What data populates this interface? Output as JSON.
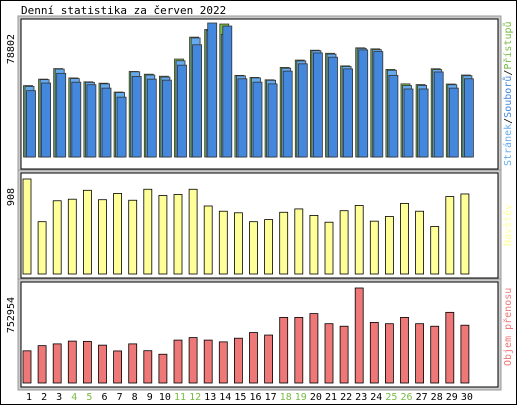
{
  "chart_data": [
    {
      "type": "bar",
      "title": "Denní statistika za červen 2022",
      "ylabel_max": "78802",
      "categories": [
        "1",
        "2",
        "3",
        "4",
        "5",
        "6",
        "7",
        "8",
        "9",
        "10",
        "11",
        "12",
        "13",
        "14",
        "15",
        "16",
        "17",
        "18",
        "19",
        "20",
        "21",
        "22",
        "23",
        "24",
        "25",
        "26",
        "27",
        "28",
        "29",
        "30"
      ],
      "weekend_days": [
        "4",
        "5",
        "11",
        "12",
        "18",
        "19",
        "25",
        "26"
      ],
      "legend": [
        "Stránek",
        "/",
        "Souborů",
        "/",
        "Přístupů"
      ],
      "colors": {
        "pages": "#66aaee",
        "files": "#4488dd",
        "hits": "#77bb44"
      },
      "ylim": [
        0,
        78802
      ],
      "series": [
        {
          "name": "Stránek",
          "values": [
            41500,
            45500,
            51700,
            46100,
            43900,
            43000,
            37900,
            50100,
            48200,
            47000,
            56600,
            70000,
            74500,
            72100,
            47700,
            46500,
            45100,
            52200,
            56500,
            62500,
            60500,
            53200,
            63900,
            63100,
            51000,
            42000,
            42100,
            51400,
            42500,
            47800
          ]
        },
        {
          "name": "Souborů",
          "values": [
            39000,
            43500,
            49200,
            44000,
            42500,
            40500,
            35200,
            47400,
            45800,
            45200,
            54000,
            66000,
            78802,
            77000,
            46000,
            44000,
            43000,
            50500,
            54800,
            61200,
            58700,
            51800,
            63000,
            62000,
            48000,
            40000,
            40000,
            50000,
            40500,
            46000
          ]
        },
        {
          "name": "Přístupů",
          "values": [
            42000,
            45800,
            52000,
            46500,
            44200,
            43400,
            38200,
            50300,
            48700,
            47500,
            57600,
            70500,
            75000,
            78200,
            48000,
            46800,
            45400,
            52700,
            57000,
            62800,
            61000,
            53600,
            64200,
            63600,
            51500,
            43000,
            42600,
            51900,
            42900,
            48200
          ]
        }
      ]
    },
    {
      "type": "bar",
      "ylabel_max": "908",
      "legend": [
        "Návštěv"
      ],
      "colors": {
        "visits": "#ffff99"
      },
      "ylim": [
        0,
        908
      ],
      "series": [
        {
          "name": "Návštěv",
          "values": [
            908,
            500,
            700,
            715,
            800,
            710,
            770,
            705,
            810,
            750,
            760,
            810,
            650,
            600,
            585,
            500,
            520,
            590,
            622,
            560,
            495,
            605,
            655,
            505,
            550,
            675,
            600,
            454,
            740,
            765
          ]
        }
      ]
    },
    {
      "type": "bar",
      "ylabel_max": "752954",
      "legend": [
        "Objem přenosu"
      ],
      "colors": {
        "kbytes": "#ee7777"
      },
      "ylim": [
        0,
        752954
      ],
      "series": [
        {
          "name": "Objem přenosu",
          "values": [
            255000,
            296000,
            310000,
            332000,
            330000,
            300000,
            254000,
            310000,
            256000,
            228000,
            340000,
            360000,
            340000,
            326000,
            355000,
            400000,
            380000,
            520000,
            520000,
            550000,
            470000,
            450000,
            752954,
            480000,
            470000,
            520000,
            470000,
            450000,
            560000,
            458000
          ]
        }
      ]
    }
  ]
}
